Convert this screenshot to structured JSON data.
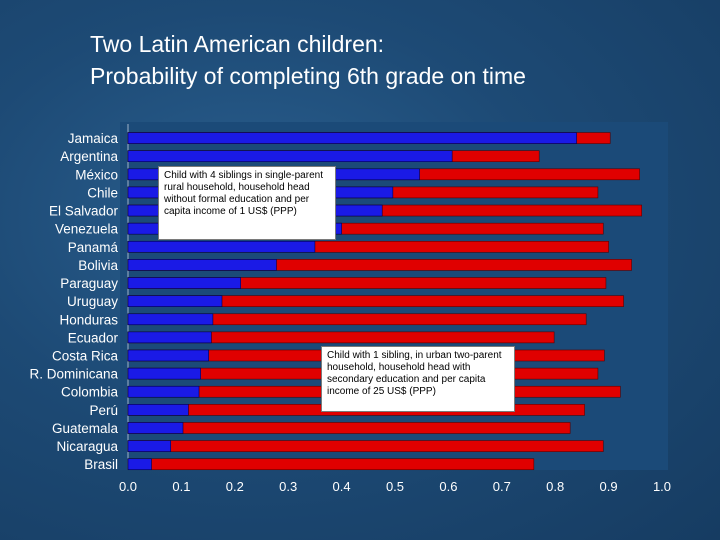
{
  "chart_data": {
    "type": "bar",
    "orientation": "horizontal",
    "stacked": false,
    "title": "Two Latin American children:",
    "subtitle": "Probability of completing 6th grade on time",
    "categories": [
      "Jamaica",
      "Argentina",
      "México",
      "Chile",
      "El Salvador",
      "Venezuela",
      "Panamá",
      "Bolivia",
      "Paraguay",
      "Uruguay",
      "Honduras",
      "Ecuador",
      "Costa Rica",
      "R. Dominicana",
      "Colombia",
      "Perú",
      "Guatemala",
      "Nicaragua",
      "Brasil"
    ],
    "series": [
      {
        "color": "#e00000",
        "values": [
          0.903,
          0.77,
          0.958,
          0.88,
          0.962,
          0.89,
          0.9,
          0.943,
          0.895,
          0.928,
          0.858,
          0.798,
          0.892,
          0.88,
          0.922,
          0.855,
          0.828,
          0.89,
          0.76
        ]
      },
      {
        "color": "#1a1ae6",
        "values": [
          0.84,
          0.607,
          0.546,
          0.496,
          0.476,
          0.4,
          0.35,
          0.278,
          0.211,
          0.176,
          0.159,
          0.156,
          0.151,
          0.136,
          0.133,
          0.113,
          0.103,
          0.08,
          0.044
        ]
      }
    ],
    "xlim": [
      0,
      1
    ],
    "xticks": [
      "0.0",
      "0.1",
      "0.2",
      "0.3",
      "0.4",
      "0.5",
      "0.6",
      "0.7",
      "0.8",
      "0.9",
      "1.0"
    ],
    "grid": false,
    "annotations": [
      {
        "text": "Child with 4 siblings in single-parent rural household, household head without formal education and per capita income of 1 US$ (PPP)"
      },
      {
        "text": "Child with 1 sibling, in urban two-parent household, household head with secondary education and per capita income of 25 US$ (PPP)"
      }
    ]
  }
}
